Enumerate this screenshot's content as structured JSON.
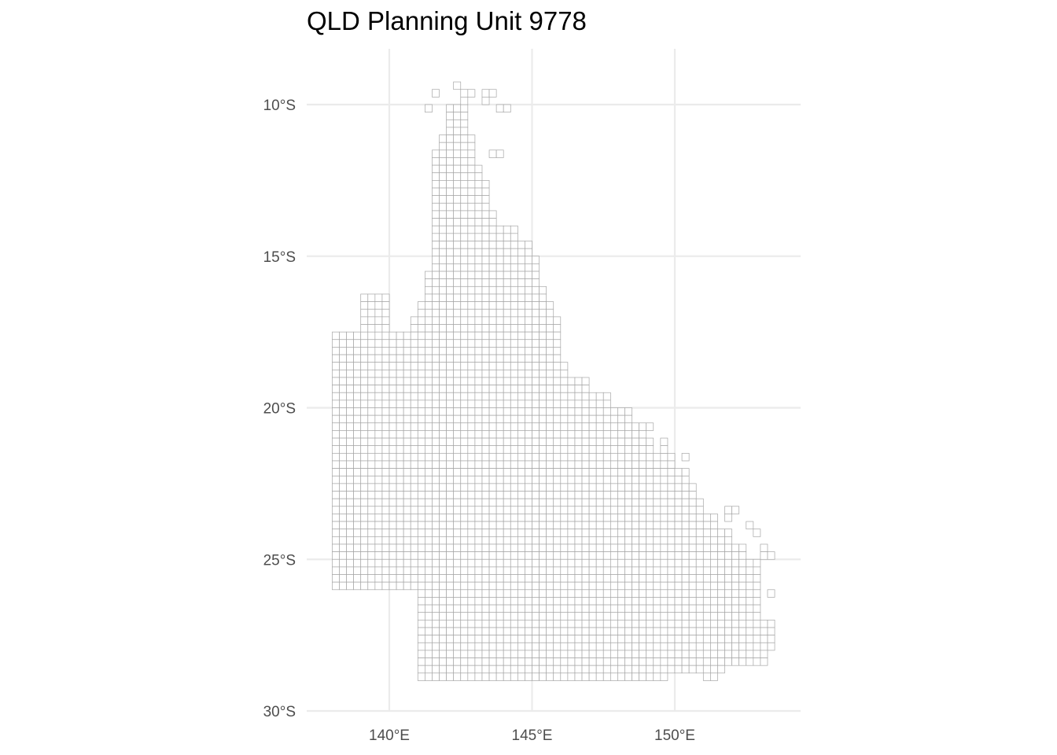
{
  "title": "QLD Planning Unit 9778",
  "chart_data": {
    "type": "map",
    "title": "QLD Planning Unit 9778",
    "x_axis": {
      "label": "",
      "range": [
        137.3,
        154.5
      ],
      "ticks": [
        140,
        145,
        150
      ],
      "tick_labels": [
        "140°E",
        "145°E",
        "150°E"
      ]
    },
    "y_axis": {
      "label": "",
      "range": [
        -30.0,
        -8.2
      ],
      "ticks": [
        -10,
        -15,
        -20,
        -25,
        -30
      ],
      "tick_labels": [
        "10°S",
        "15°S",
        "20°S",
        "25°S",
        "30°S"
      ]
    },
    "grid": true,
    "cell_size_deg": 0.25,
    "cell_fill": "#ffffff",
    "cell_stroke": "#a6a6a6",
    "grid_color": "#ebebeb",
    "mainland_rows": [
      {
        "lat": [
          -10.0,
          -10.5
        ],
        "lon": [
          141.9,
          142.9
        ]
      },
      {
        "lat": [
          -10.5,
          -11.0
        ],
        "lon": [
          141.9,
          142.9
        ]
      },
      {
        "lat": [
          -11.0,
          -11.5
        ],
        "lon": [
          141.8,
          143.0
        ]
      },
      {
        "lat": [
          -11.5,
          -12.0
        ],
        "lon": [
          141.6,
          143.2
        ]
      },
      {
        "lat": [
          -12.0,
          -12.5
        ],
        "lon": [
          141.5,
          143.4
        ]
      },
      {
        "lat": [
          -12.5,
          -13.0
        ],
        "lon": [
          141.5,
          143.6
        ]
      },
      {
        "lat": [
          -13.0,
          -13.5
        ],
        "lon": [
          141.4,
          143.6
        ]
      },
      {
        "lat": [
          -13.5,
          -14.0
        ],
        "lon": [
          141.4,
          143.8
        ]
      },
      {
        "lat": [
          -14.0,
          -14.5
        ],
        "lon": [
          141.4,
          144.5
        ]
      },
      {
        "lat": [
          -14.5,
          -15.0
        ],
        "lon": [
          141.4,
          145.2
        ]
      },
      {
        "lat": [
          -15.0,
          -15.5
        ],
        "lon": [
          141.4,
          145.4
        ]
      },
      {
        "lat": [
          -15.5,
          -16.0
        ],
        "lon": [
          141.3,
          145.4
        ]
      },
      {
        "lat": [
          -16.0,
          -16.5
        ],
        "lon": [
          141.2,
          145.5
        ]
      },
      {
        "lat": [
          -16.5,
          -17.0
        ],
        "lon": [
          141.0,
          145.8
        ]
      },
      {
        "lat": [
          -17.0,
          -17.5
        ],
        "lon": [
          140.8,
          146.0
        ]
      },
      {
        "lat": [
          -17.5,
          -18.0
        ],
        "lon": [
          137.9,
          146.1
        ]
      },
      {
        "lat": [
          -18.0,
          -18.5
        ],
        "lon": [
          137.9,
          146.2
        ]
      },
      {
        "lat": [
          -18.5,
          -19.0
        ],
        "lon": [
          137.9,
          146.4
        ]
      },
      {
        "lat": [
          -19.0,
          -19.5
        ],
        "lon": [
          137.9,
          147.0
        ]
      },
      {
        "lat": [
          -19.5,
          -20.0
        ],
        "lon": [
          137.9,
          147.8
        ]
      },
      {
        "lat": [
          -20.0,
          -20.5
        ],
        "lon": [
          137.9,
          148.6
        ]
      },
      {
        "lat": [
          -20.5,
          -21.0
        ],
        "lon": [
          137.9,
          149.0
        ]
      },
      {
        "lat": [
          -21.0,
          -21.5
        ],
        "lon": [
          137.9,
          149.4
        ]
      },
      {
        "lat": [
          -21.5,
          -22.0
        ],
        "lon": [
          137.9,
          150.0
        ]
      },
      {
        "lat": [
          -22.0,
          -22.5
        ],
        "lon": [
          137.9,
          150.6
        ]
      },
      {
        "lat": [
          -22.5,
          -23.0
        ],
        "lon": [
          137.9,
          150.8
        ]
      },
      {
        "lat": [
          -23.0,
          -23.5
        ],
        "lon": [
          137.9,
          151.0
        ]
      },
      {
        "lat": [
          -23.5,
          -24.0
        ],
        "lon": [
          137.9,
          151.6
        ]
      },
      {
        "lat": [
          -24.0,
          -24.5
        ],
        "lon": [
          137.9,
          152.2
        ]
      },
      {
        "lat": [
          -24.5,
          -25.0
        ],
        "lon": [
          137.9,
          152.6
        ]
      },
      {
        "lat": [
          -25.0,
          -25.5
        ],
        "lon": [
          137.9,
          153.0
        ]
      },
      {
        "lat": [
          -25.5,
          -26.0
        ],
        "lon": [
          137.9,
          153.1
        ]
      },
      {
        "lat": [
          -26.0,
          -26.5
        ],
        "lon": [
          140.9,
          153.1
        ]
      },
      {
        "lat": [
          -26.5,
          -27.0
        ],
        "lon": [
          140.9,
          153.2
        ]
      },
      {
        "lat": [
          -27.0,
          -27.5
        ],
        "lon": [
          140.9,
          153.5
        ]
      },
      {
        "lat": [
          -27.5,
          -28.0
        ],
        "lon": [
          140.9,
          153.5
        ]
      },
      {
        "lat": [
          -28.0,
          -28.5
        ],
        "lon": [
          140.9,
          153.4
        ]
      },
      {
        "lat": [
          -28.5,
          -29.0
        ],
        "lon": [
          140.9,
          149.8
        ]
      }
    ],
    "extra_regions": [
      {
        "lat": [
          -16.2,
          -17.5
        ],
        "lon": [
          139.0,
          140.0
        ]
      },
      {
        "lat": [
          -17.5,
          -17.7
        ],
        "lon": [
          140.0,
          140.9
        ]
      },
      {
        "lat": [
          -28.5,
          -28.8
        ],
        "lon": [
          149.8,
          151.8
        ]
      },
      {
        "lat": [
          -28.8,
          -29.1
        ],
        "lon": [
          151.0,
          151.6
        ]
      },
      {
        "lat": [
          -23.2,
          -23.8
        ],
        "lon": [
          151.8,
          152.2
        ]
      },
      {
        "lat": [
          -24.6,
          -25.2
        ],
        "lon": [
          153.0,
          153.4
        ]
      }
    ],
    "islands": [
      {
        "lat": -9.2,
        "lon": 142.2
      },
      {
        "lat": -9.3,
        "lon": 142.3
      },
      {
        "lat": -9.4,
        "lon": 142.6
      },
      {
        "lat": -9.4,
        "lon": 142.8
      },
      {
        "lat": -9.5,
        "lon": 143.3
      },
      {
        "lat": -9.5,
        "lon": 143.5
      },
      {
        "lat": -9.6,
        "lon": 141.5
      },
      {
        "lat": -9.8,
        "lon": 142.6
      },
      {
        "lat": -9.8,
        "lon": 143.2
      },
      {
        "lat": -9.9,
        "lon": 141.3
      },
      {
        "lat": -10.0,
        "lon": 143.8
      },
      {
        "lat": -10.0,
        "lon": 144.0
      },
      {
        "lat": -11.4,
        "lon": 143.6
      },
      {
        "lat": -11.6,
        "lon": 143.8
      },
      {
        "lat": -16.2,
        "lon": 139.1
      },
      {
        "lat": -17.5,
        "lon": 140.1
      },
      {
        "lat": -20.5,
        "lon": 149.1
      },
      {
        "lat": -21.0,
        "lon": 149.4
      },
      {
        "lat": -21.2,
        "lon": 149.6
      },
      {
        "lat": -21.6,
        "lon": 150.3
      },
      {
        "lat": -23.3,
        "lon": 152.0
      },
      {
        "lat": -23.8,
        "lon": 152.4
      },
      {
        "lat": -24.1,
        "lon": 152.7
      },
      {
        "lat": -24.8,
        "lon": 153.3
      },
      {
        "lat": -25.9,
        "lon": 153.3
      }
    ]
  }
}
